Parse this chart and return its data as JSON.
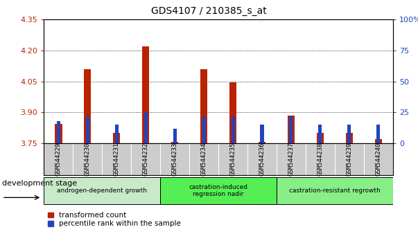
{
  "title": "GDS4107 / 210385_s_at",
  "samples": [
    "GSM544229",
    "GSM544230",
    "GSM544231",
    "GSM544232",
    "GSM544233",
    "GSM544234",
    "GSM544235",
    "GSM544236",
    "GSM544237",
    "GSM544238",
    "GSM544239",
    "GSM544240"
  ],
  "red_values": [
    3.845,
    4.11,
    3.8,
    4.22,
    3.757,
    4.11,
    4.045,
    3.757,
    3.885,
    3.8,
    3.8,
    3.772
  ],
  "blue_values_pct": [
    18,
    22,
    15,
    25,
    12,
    22,
    22,
    15,
    22,
    15,
    15,
    15
  ],
  "ylim_left": [
    3.75,
    4.35
  ],
  "ylim_right": [
    0,
    100
  ],
  "yticks_left": [
    3.75,
    3.9,
    4.05,
    4.2,
    4.35
  ],
  "yticks_right": [
    0,
    25,
    50,
    75,
    100
  ],
  "groups": [
    {
      "label": "androgen-dependent growth",
      "start": 0,
      "end": 3,
      "color": "#c8eac8"
    },
    {
      "label": "castration-induced\nregression nadir",
      "start": 4,
      "end": 7,
      "color": "#66dd66"
    },
    {
      "label": "castration-resistant regrowth",
      "start": 8,
      "end": 11,
      "color": "#88ee88"
    }
  ],
  "dev_stage_label": "development stage",
  "legend_red": "transformed count",
  "legend_blue": "percentile rank within the sample",
  "red_color": "#bb2200",
  "blue_color": "#2244bb",
  "base_red": 3.75,
  "grid_dotted_at": [
    3.9,
    4.05,
    4.2
  ],
  "bg_gray": "#cccccc",
  "plot_bg": "#ffffff",
  "fig_bg": "#ffffff"
}
